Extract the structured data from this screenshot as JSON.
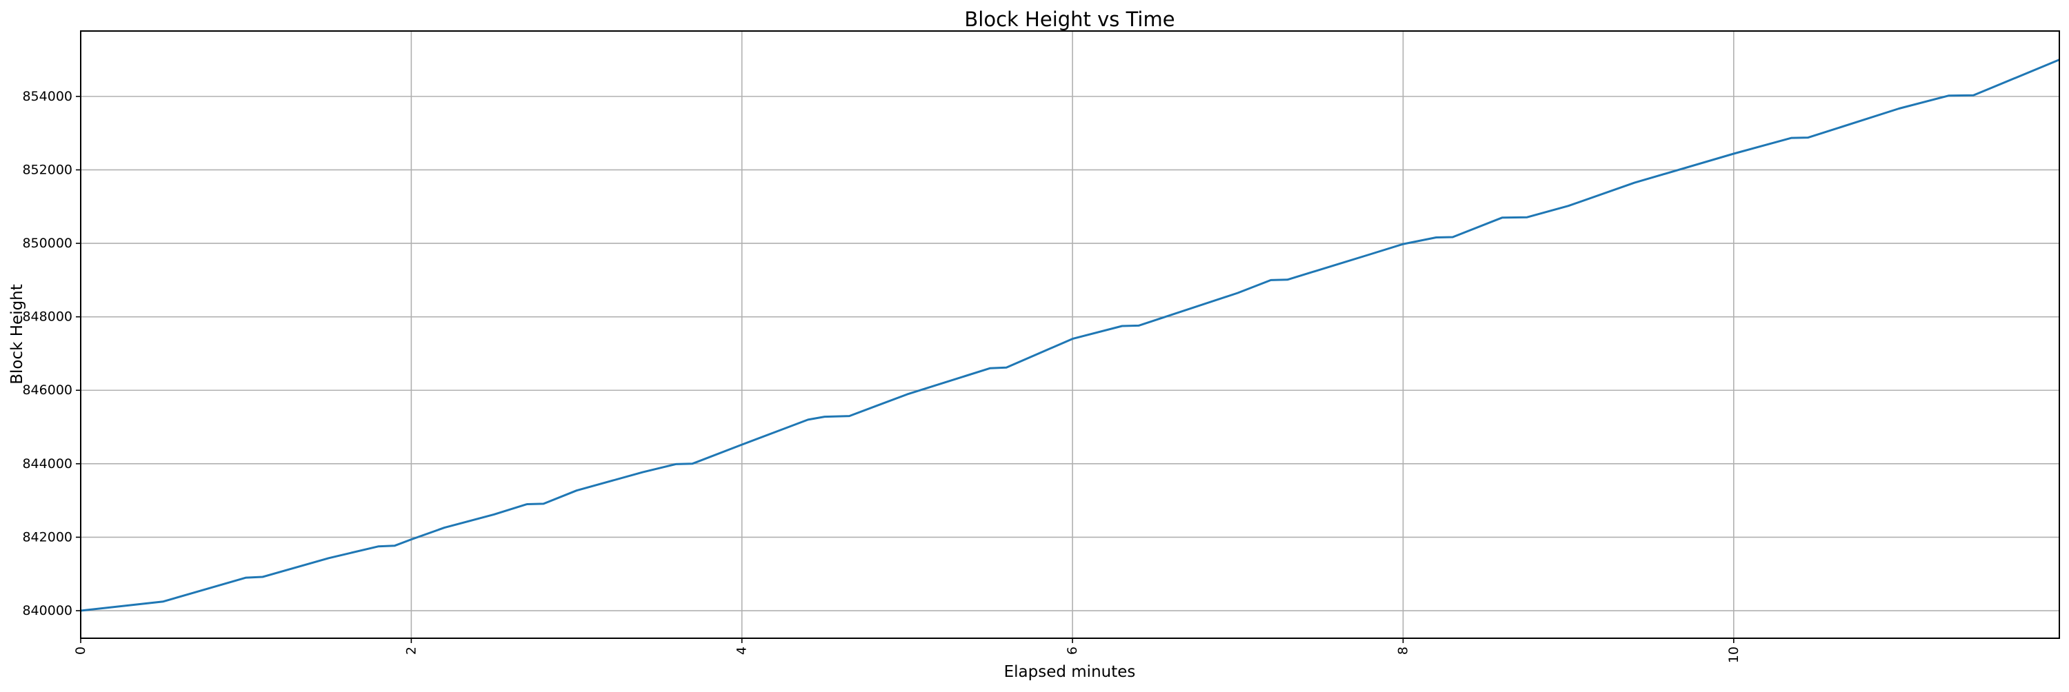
{
  "chart_data": {
    "type": "line",
    "title": "Block Height vs Time",
    "xlabel": "Elapsed minutes",
    "ylabel": "Block Height",
    "xlim": [
      0,
      11.97
    ],
    "ylim": [
      839250,
      855780
    ],
    "xticks": [
      0,
      2,
      4,
      6,
      8,
      10
    ],
    "yticks": [
      840000,
      842000,
      844000,
      846000,
      848000,
      850000,
      852000,
      854000
    ],
    "grid": true,
    "line_color": "#1f77b4",
    "series": [
      {
        "x": [
          0,
          0.5,
          1.0,
          1.1,
          1.5,
          1.8,
          1.9,
          2.0,
          2.2,
          2.5,
          2.7,
          2.8,
          3.0,
          3.4,
          3.6,
          3.7,
          4.0,
          4.4,
          4.5,
          4.65,
          5.0,
          5.5,
          5.6,
          6.0,
          6.3,
          6.4,
          7.0,
          7.2,
          7.3,
          7.8,
          8.0,
          8.2,
          8.3,
          8.6,
          8.75,
          9.0,
          9.4,
          10.0,
          10.35,
          10.45,
          11.0,
          11.3,
          11.45,
          11.97
        ],
        "y": [
          840000,
          840250,
          840900,
          840920,
          841430,
          841750,
          841770,
          841940,
          842260,
          842620,
          842900,
          842910,
          843270,
          843770,
          843990,
          844000,
          844520,
          845200,
          845280,
          845300,
          845890,
          846600,
          846620,
          847400,
          847750,
          847760,
          848650,
          849000,
          849010,
          849700,
          849980,
          850160,
          850170,
          850700,
          850710,
          851020,
          851650,
          852440,
          852870,
          852880,
          853670,
          854020,
          854030,
          855000
        ]
      }
    ]
  }
}
